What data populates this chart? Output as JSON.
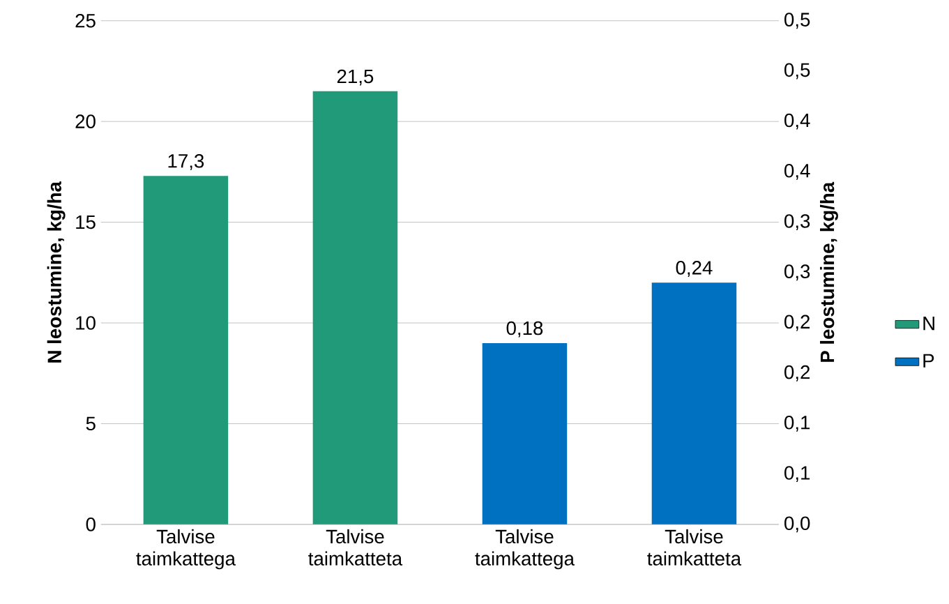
{
  "chart_data": {
    "type": "bar",
    "categories": [
      "Talvise taimkattega",
      "Talvise taimkatteta",
      "Talvise taimkattega",
      "Talvise taimkatteta"
    ],
    "series": [
      {
        "name": "N",
        "color": "#209a78",
        "values": [
          17.3,
          21.5,
          null,
          null
        ],
        "value_labels": [
          "17,3",
          "21,5",
          null,
          null
        ]
      },
      {
        "name": "P",
        "color": "#0070c0",
        "axis": "y2",
        "values": [
          null,
          null,
          0.18,
          0.24
        ],
        "value_labels": [
          null,
          null,
          "0,18",
          "0,24"
        ]
      }
    ],
    "ylabel": "N leostumine, kg/ha",
    "y2label": "P leostumine, kg/ha",
    "ylim": [
      0,
      25
    ],
    "yticks": [
      0,
      5,
      10,
      15,
      20,
      25
    ],
    "y2lim": [
      0,
      0.5
    ],
    "y2ticks": [
      {
        "value": 0,
        "label": "0,0"
      },
      {
        "value": 0.05,
        "label": "0,1"
      },
      {
        "value": 0.1,
        "label": "0,1"
      },
      {
        "value": 0.15,
        "label": "0,2"
      },
      {
        "value": 0.2,
        "label": "0,2"
      },
      {
        "value": 0.25,
        "label": "0,3"
      },
      {
        "value": 0.3,
        "label": "0,3"
      },
      {
        "value": 0.35,
        "label": "0,4"
      },
      {
        "value": 0.4,
        "label": "0,4"
      },
      {
        "value": 0.45,
        "label": "0,5"
      },
      {
        "value": 0.5,
        "label": "0,5"
      }
    ],
    "grid": "y",
    "legend": "right"
  }
}
